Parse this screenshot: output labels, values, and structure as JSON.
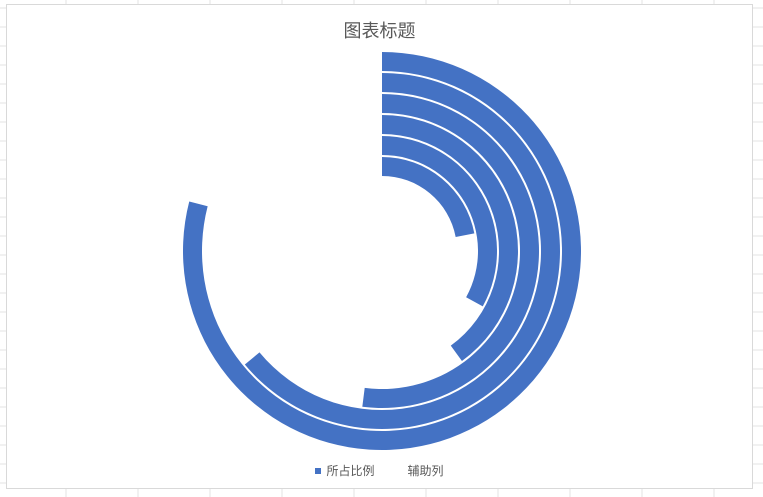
{
  "chart_data": {
    "type": "doughnut",
    "title": "图表标题",
    "series": [
      {
        "name": "所占比例",
        "values": [
          0.22,
          0.33,
          0.4,
          0.52,
          0.64,
          0.79
        ],
        "color": "#4472C4"
      },
      {
        "name": "辅助列",
        "values": [
          0.78,
          0.67,
          0.6,
          0.48,
          0.36,
          0.21
        ],
        "color": "none"
      }
    ],
    "legend_position": "bottom"
  }
}
